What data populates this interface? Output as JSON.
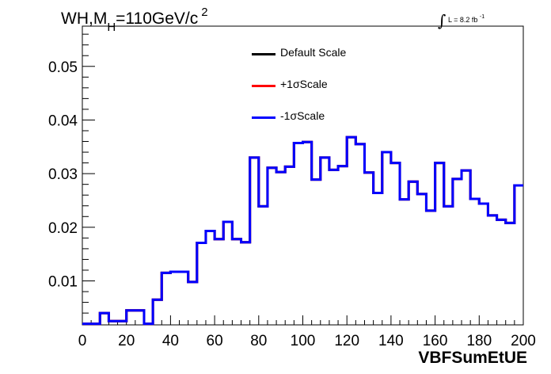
{
  "title": {
    "main": "WH,M",
    "sub": "H",
    "rest": "=110GeV/c",
    "sup": "2"
  },
  "lumi": {
    "integral": "∫",
    "text": "L = 8.2 fb",
    "sup": "-1"
  },
  "chart_data": {
    "type": "line",
    "xlabel": "VBFSumEtUE",
    "ylabel": "",
    "xlim": [
      0,
      200
    ],
    "ylim": [
      0.0018,
      0.0575
    ],
    "xticks": [
      0,
      20,
      40,
      60,
      80,
      100,
      120,
      140,
      160,
      180,
      200
    ],
    "xtick_labels": [
      "0",
      "20",
      "40",
      "60",
      "80",
      "100",
      "120",
      "140",
      "160",
      "180",
      "200"
    ],
    "yticks": [
      0.01,
      0.02,
      0.03,
      0.04,
      0.05
    ],
    "ytick_labels": [
      "0.01",
      "0.02",
      "0.03",
      "0.04",
      "0.05"
    ],
    "grid": false,
    "legend_position": "top-center",
    "bin_edges": [
      0,
      4,
      8,
      12,
      16,
      20,
      24,
      28,
      32,
      36,
      40,
      44,
      48,
      52,
      56,
      60,
      64,
      68,
      72,
      76,
      80,
      84,
      88,
      92,
      96,
      100,
      104,
      108,
      112,
      116,
      120,
      124,
      128,
      132,
      136,
      140,
      144,
      148,
      152,
      156,
      160,
      164,
      168,
      172,
      176,
      180,
      184,
      188,
      192,
      196,
      200
    ],
    "series": [
      {
        "name": "Default Scale",
        "color": "#000000",
        "values": [
          0.002,
          0.002,
          0.004,
          0.0025,
          0.0025,
          0.0045,
          0.0045,
          0.002,
          0.0065,
          0.0115,
          0.0117,
          0.0117,
          0.0098,
          0.0171,
          0.0193,
          0.0178,
          0.021,
          0.0178,
          0.0172,
          0.033,
          0.0239,
          0.0311,
          0.0303,
          0.0313,
          0.0357,
          0.0359,
          0.0289,
          0.033,
          0.0307,
          0.0314,
          0.0368,
          0.0355,
          0.0302,
          0.0264,
          0.034,
          0.032,
          0.0252,
          0.0285,
          0.0262,
          0.0231,
          0.032,
          0.0239,
          0.029,
          0.0306,
          0.0253,
          0.0244,
          0.0222,
          0.0214,
          0.0208,
          0.0278
        ]
      },
      {
        "name": "+1σScale",
        "color": "#ff0000",
        "values": [
          0.002,
          0.002,
          0.004,
          0.0025,
          0.0025,
          0.0045,
          0.0045,
          0.002,
          0.0065,
          0.0115,
          0.0117,
          0.0117,
          0.0098,
          0.0171,
          0.0193,
          0.0178,
          0.021,
          0.0178,
          0.0172,
          0.033,
          0.0239,
          0.0311,
          0.0303,
          0.0313,
          0.0357,
          0.0359,
          0.0289,
          0.033,
          0.0307,
          0.0314,
          0.0368,
          0.0355,
          0.0302,
          0.0264,
          0.034,
          0.032,
          0.0252,
          0.0285,
          0.0262,
          0.0231,
          0.032,
          0.0239,
          0.029,
          0.0306,
          0.0253,
          0.0244,
          0.0222,
          0.0214,
          0.0208,
          0.0278
        ]
      },
      {
        "name": "-1σScale",
        "color": "#0000ff",
        "values": [
          0.002,
          0.002,
          0.004,
          0.0025,
          0.0025,
          0.0045,
          0.0045,
          0.002,
          0.0065,
          0.0115,
          0.0117,
          0.0117,
          0.0098,
          0.0171,
          0.0193,
          0.0178,
          0.021,
          0.0178,
          0.0172,
          0.033,
          0.0239,
          0.0311,
          0.0303,
          0.0313,
          0.0357,
          0.0359,
          0.0289,
          0.033,
          0.0307,
          0.0314,
          0.0368,
          0.0355,
          0.0302,
          0.0264,
          0.034,
          0.032,
          0.0252,
          0.0285,
          0.0262,
          0.0231,
          0.032,
          0.0239,
          0.029,
          0.0306,
          0.0253,
          0.0244,
          0.0222,
          0.0214,
          0.0208,
          0.0278
        ]
      }
    ]
  }
}
